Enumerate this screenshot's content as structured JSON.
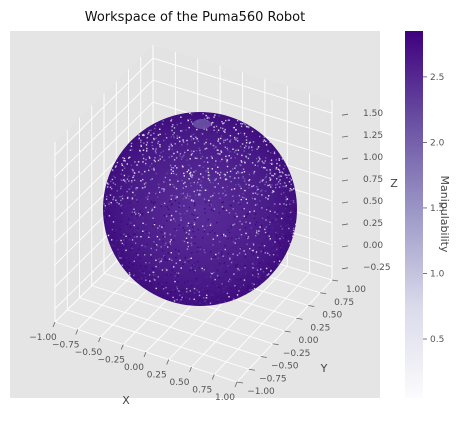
{
  "chart_data": {
    "type": "scatter",
    "projection": "3d",
    "title": "Workspace of the Puma560 Robot",
    "xlabel": "X",
    "ylabel": "Y",
    "zlabel": "Z",
    "xlim": [
      -1.0,
      1.0
    ],
    "ylim": [
      -1.0,
      1.0
    ],
    "zlim": [
      -0.25,
      1.5
    ],
    "xticks": [
      "−1.00",
      "−0.75",
      "−0.50",
      "−0.25",
      "0.00",
      "0.25",
      "0.50",
      "0.75",
      "1.00"
    ],
    "yticks": [
      "−1.00",
      "−0.75",
      "−0.50",
      "−0.25",
      "0.00",
      "0.25",
      "0.50",
      "0.75",
      "1.00"
    ],
    "zticks": [
      "−0.25",
      "0.00",
      "0.25",
      "0.50",
      "0.75",
      "1.00",
      "1.25",
      "1.50"
    ],
    "series": [
      {
        "center": [
          0.0,
          0.0,
          0.65
        ],
        "radius": 0.87,
        "color_by": "manipulability"
      }
    ],
    "colorbar": {
      "label": "Manipulability",
      "cmap": "Purples",
      "ticks": [
        "0.5",
        "1.0",
        "1.5",
        "2.0",
        "2.5"
      ],
      "range": [
        0.05,
        2.85
      ]
    },
    "grid": true,
    "pane_color": "#e5e5e5",
    "grid_color": "#ffffff"
  }
}
